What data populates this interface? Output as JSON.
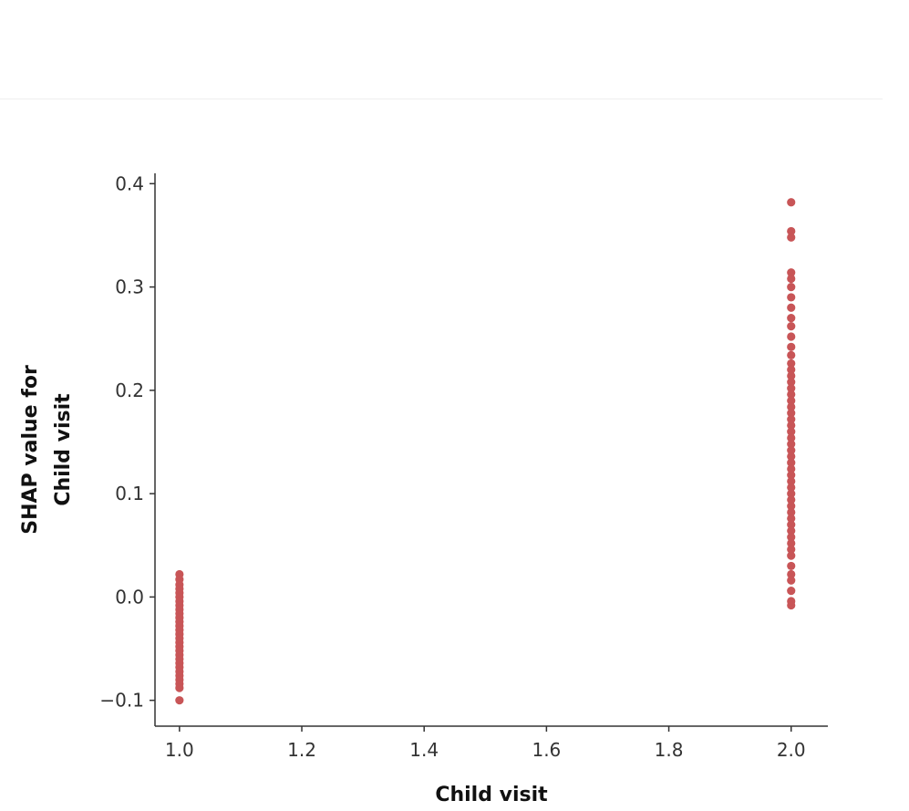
{
  "chart_data": {
    "type": "scatter",
    "title": "",
    "xlabel": "Child visit",
    "ylabel_lines": [
      "SHAP value for",
      "Child visit"
    ],
    "xlim": [
      0.96,
      2.06
    ],
    "ylim": [
      -0.125,
      0.41
    ],
    "x_ticks": [
      1.0,
      1.2,
      1.4,
      1.6,
      1.8,
      2.0
    ],
    "x_tick_labels": [
      "1.0",
      "1.2",
      "1.4",
      "1.6",
      "1.8",
      "2.0"
    ],
    "y_ticks": [
      -0.1,
      0.0,
      0.1,
      0.2,
      0.3,
      0.4
    ],
    "y_tick_labels": [
      "−0.1",
      "0.0",
      "0.1",
      "0.2",
      "0.3",
      "0.4"
    ],
    "grid": false,
    "point_color": "#c85557",
    "series": [
      {
        "x": 1.0,
        "y": [
          0.022,
          0.017,
          0.012,
          0.008,
          0.004,
          0.0,
          -0.004,
          -0.008,
          -0.012,
          -0.016,
          -0.02,
          -0.024,
          -0.028,
          -0.032,
          -0.036,
          -0.04,
          -0.044,
          -0.048,
          -0.052,
          -0.056,
          -0.06,
          -0.064,
          -0.068,
          -0.072,
          -0.076,
          -0.08,
          -0.084,
          -0.088,
          -0.1
        ]
      },
      {
        "x": 2.0,
        "y": [
          0.382,
          0.354,
          0.348,
          0.314,
          0.308,
          0.3,
          0.29,
          0.28,
          0.27,
          0.262,
          0.252,
          0.242,
          0.234,
          0.226,
          0.22,
          0.214,
          0.208,
          0.202,
          0.196,
          0.19,
          0.184,
          0.178,
          0.172,
          0.166,
          0.16,
          0.154,
          0.148,
          0.142,
          0.136,
          0.13,
          0.124,
          0.118,
          0.112,
          0.106,
          0.1,
          0.094,
          0.088,
          0.082,
          0.076,
          0.07,
          0.064,
          0.058,
          0.052,
          0.046,
          0.04,
          0.03,
          0.022,
          0.016,
          0.006,
          -0.004,
          -0.008
        ]
      }
    ]
  }
}
